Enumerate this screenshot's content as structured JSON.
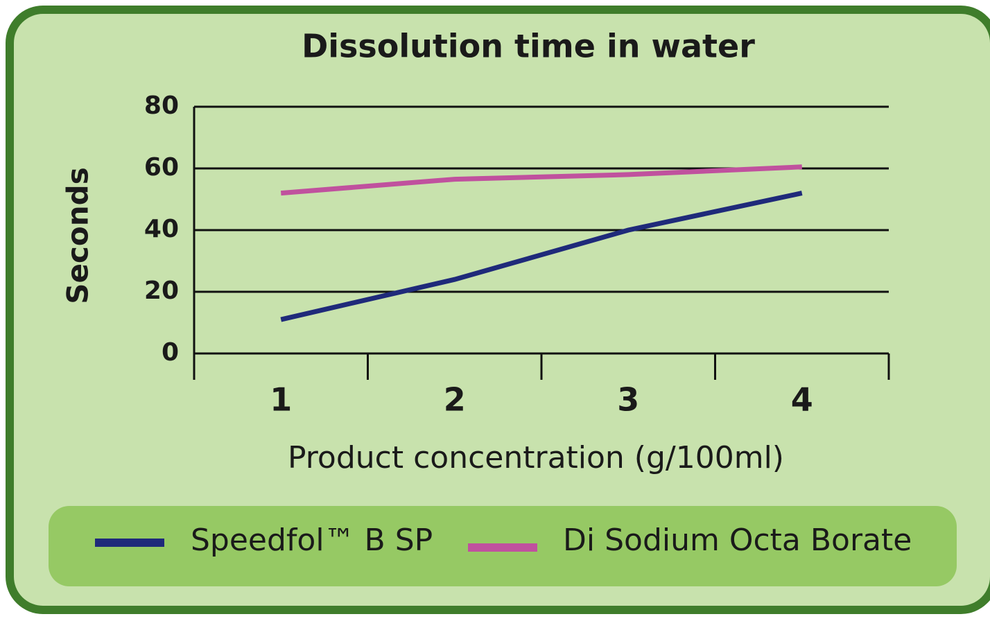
{
  "chart_data": {
    "type": "line",
    "title": "Dissolution time in water",
    "x_label": "Product concentration (g/100ml)",
    "y_label": "Seconds",
    "categories": [
      "1",
      "2",
      "3",
      "4"
    ],
    "series": [
      {
        "name": "Speedfol™ B SP",
        "color": "#1f2a7a",
        "values": [
          11,
          24,
          40,
          52
        ]
      },
      {
        "name": "Di Sodium Octa Borate",
        "color": "#c0519e",
        "values": [
          52,
          56.5,
          58,
          60.5
        ]
      }
    ],
    "ylim": [
      0,
      80
    ],
    "yticks": [
      0,
      20,
      40,
      60,
      80
    ],
    "grid": true
  }
}
